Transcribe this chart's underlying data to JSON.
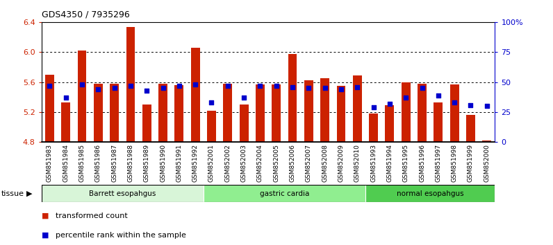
{
  "title": "GDS4350 / 7935296",
  "samples": [
    "GSM851983",
    "GSM851984",
    "GSM851985",
    "GSM851986",
    "GSM851987",
    "GSM851988",
    "GSM851989",
    "GSM851990",
    "GSM851991",
    "GSM851992",
    "GSM852001",
    "GSM852002",
    "GSM852003",
    "GSM852004",
    "GSM852005",
    "GSM852006",
    "GSM852007",
    "GSM852008",
    "GSM852009",
    "GSM852010",
    "GSM851993",
    "GSM851994",
    "GSM851995",
    "GSM851996",
    "GSM851997",
    "GSM851998",
    "GSM851999",
    "GSM852000"
  ],
  "red_values": [
    5.7,
    5.33,
    6.02,
    5.58,
    5.58,
    6.33,
    5.3,
    5.58,
    5.56,
    6.06,
    5.22,
    5.58,
    5.3,
    5.57,
    5.57,
    5.97,
    5.62,
    5.65,
    5.55,
    5.69,
    5.18,
    5.29,
    5.6,
    5.58,
    5.33,
    5.57,
    5.16,
    4.82
  ],
  "blue_values": [
    47,
    37,
    48,
    44,
    45,
    47,
    43,
    45,
    47,
    48,
    33,
    47,
    37,
    47,
    47,
    46,
    45,
    45,
    44,
    46,
    29,
    32,
    37,
    45,
    39,
    33,
    31,
    30
  ],
  "groups": [
    {
      "label": "Barrett esopahgus",
      "start": 0,
      "end": 9,
      "color": "#d8f5d8"
    },
    {
      "label": "gastric cardia",
      "start": 10,
      "end": 19,
      "color": "#90ee90"
    },
    {
      "label": "normal esopahgus",
      "start": 20,
      "end": 27,
      "color": "#50cc50"
    }
  ],
  "ylim_left": [
    4.8,
    6.4
  ],
  "ylim_right": [
    0,
    100
  ],
  "yticks_left": [
    4.8,
    5.2,
    5.6,
    6.0,
    6.4
  ],
  "yticks_right": [
    0,
    25,
    50,
    75,
    100
  ],
  "bar_color": "#cc2200",
  "dot_color": "#0000cc",
  "bar_bottom": 4.8,
  "dot_size": 18,
  "xtick_bg": "#d8d8d8"
}
